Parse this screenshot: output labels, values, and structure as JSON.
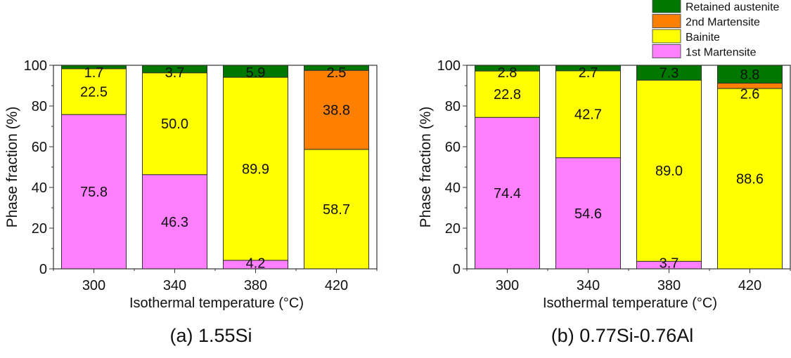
{
  "legend": {
    "placement": "top-right",
    "items": [
      {
        "label": "Retained austenite",
        "color": "#007800"
      },
      {
        "label": "2nd Martensite",
        "color": "#FF7F00"
      },
      {
        "label": "Bainite",
        "color": "#FFFF00"
      },
      {
        "label": "1st Martensite",
        "color": "#FF7FFF"
      }
    ]
  },
  "chart_data": [
    {
      "type": "bar",
      "stacked": true,
      "caption": "(a) 1.55Si",
      "xlabel": "Isothermal temperature (°C)",
      "ylabel": "Phase fraction (%)",
      "categories": [
        "300",
        "340",
        "380",
        "420"
      ],
      "x": [
        300,
        340,
        380,
        420
      ],
      "xlim": [
        280,
        440
      ],
      "ylim": [
        0,
        100
      ],
      "yticks": [
        0,
        20,
        40,
        60,
        80,
        100
      ],
      "series": [
        {
          "name": "1st Martensite",
          "color": "#FF7FFF",
          "values": [
            75.8,
            46.3,
            4.2,
            0
          ]
        },
        {
          "name": "Bainite",
          "color": "#FFFF00",
          "values": [
            22.5,
            50.0,
            89.9,
            58.7
          ]
        },
        {
          "name": "2nd Martensite",
          "color": "#FF7F00",
          "values": [
            0,
            0,
            0,
            38.8
          ]
        },
        {
          "name": "Retained austenite",
          "color": "#007800",
          "values": [
            1.7,
            3.7,
            5.9,
            2.5
          ]
        }
      ],
      "grid": false
    },
    {
      "type": "bar",
      "stacked": true,
      "caption": "(b) 0.77Si-0.76Al",
      "xlabel": "Isothermal temperature (°C)",
      "ylabel": "Phase fraction (%)",
      "categories": [
        "300",
        "340",
        "380",
        "420"
      ],
      "x": [
        300,
        340,
        380,
        420
      ],
      "xlim": [
        280,
        440
      ],
      "ylim": [
        0,
        100
      ],
      "yticks": [
        0,
        20,
        40,
        60,
        80,
        100
      ],
      "series": [
        {
          "name": "1st Martensite",
          "color": "#FF7FFF",
          "values": [
            74.4,
            54.6,
            3.7,
            0
          ]
        },
        {
          "name": "Bainite",
          "color": "#FFFF00",
          "values": [
            22.8,
            42.7,
            89.0,
            88.6
          ]
        },
        {
          "name": "2nd Martensite",
          "color": "#FF7F00",
          "values": [
            0,
            0,
            0,
            2.6
          ]
        },
        {
          "name": "Retained austenite",
          "color": "#007800",
          "values": [
            2.8,
            2.7,
            7.3,
            8.8
          ]
        }
      ],
      "grid": false
    }
  ]
}
